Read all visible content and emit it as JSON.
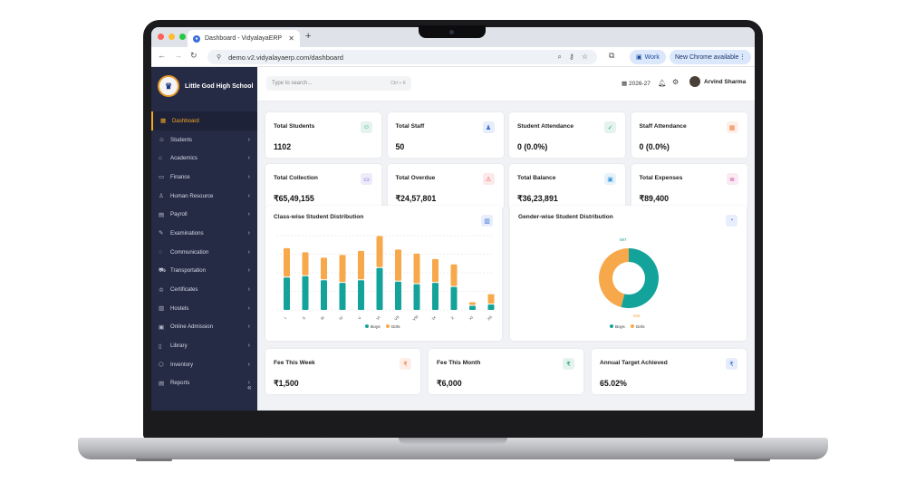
{
  "browser": {
    "tab_title": "Dashboard - VidyalayaERP",
    "url": "demo.v2.vidyalayaerp.com/dashboard",
    "work_label": "Work",
    "new_chrome_label": "New Chrome available"
  },
  "app": {
    "school_name": "Little God High School",
    "search_placeholder": "Type to search...",
    "search_shortcut": "Ctrl + K",
    "academic_year": "2026-27",
    "user_name": "Arvind Sharma"
  },
  "sidebar": {
    "items": [
      {
        "label": "Dashboard",
        "icon": "dashboard-icon",
        "active": true
      },
      {
        "label": "Students",
        "icon": "students-icon"
      },
      {
        "label": "Academics",
        "icon": "academics-icon"
      },
      {
        "label": "Finance",
        "icon": "finance-icon"
      },
      {
        "label": "Human Resource",
        "icon": "human-resource-icon"
      },
      {
        "label": "Payroll",
        "icon": "payroll-icon"
      },
      {
        "label": "Examinations",
        "icon": "examinations-icon"
      },
      {
        "label": "Communication",
        "icon": "communication-icon"
      },
      {
        "label": "Transportation",
        "icon": "transportation-icon"
      },
      {
        "label": "Certificates",
        "icon": "certificates-icon"
      },
      {
        "label": "Hostels",
        "icon": "hostels-icon"
      },
      {
        "label": "Online Admission",
        "icon": "online-admission-icon"
      },
      {
        "label": "Library",
        "icon": "library-icon"
      },
      {
        "label": "Inventory",
        "icon": "inventory-icon"
      },
      {
        "label": "Reports",
        "icon": "reports-icon"
      }
    ]
  },
  "stats": [
    {
      "label": "Total Students",
      "value": "1102",
      "icon": "students-icon",
      "color": "#22a06b"
    },
    {
      "label": "Total Staff",
      "value": "50",
      "icon": "staff-icon",
      "color": "#3b6fd8"
    },
    {
      "label": "Student Attendance",
      "value": "0 (0.0%)",
      "icon": "attendance-icon",
      "color": "#22a06b"
    },
    {
      "label": "Staff Attendance",
      "value": "0 (0.0%)",
      "icon": "calendar-icon",
      "color": "#f07b3f"
    },
    {
      "label": "Total Collection",
      "value": "₹65,49,155",
      "icon": "card-icon",
      "color": "#6b5bd6"
    },
    {
      "label": "Total Overdue",
      "value": "₹24,57,801",
      "icon": "warning-icon",
      "color": "#e5484d"
    },
    {
      "label": "Total Balance",
      "value": "₹36,23,891",
      "icon": "wallet-icon",
      "color": "#3b9ad8"
    },
    {
      "label": "Total Expenses",
      "value": "₹89,400",
      "icon": "receipt-icon",
      "color": "#d64fa0"
    }
  ],
  "fees": [
    {
      "label": "Fee This Week",
      "value": "₹1,500",
      "icon": "rupee-icon",
      "color": "#f07b3f"
    },
    {
      "label": "Fee This Month",
      "value": "₹6,000",
      "icon": "rupee-icon",
      "color": "#22a06b"
    },
    {
      "label": "Annual Target Achieved",
      "value": "65.02%",
      "icon": "rupee-icon",
      "color": "#3b6fd8"
    }
  ],
  "chart_data": [
    {
      "type": "bar",
      "title": "Class-wise Student Distribution",
      "categories": [
        "I",
        "II",
        "III",
        "IV",
        "V",
        "VI",
        "VII",
        "VIII",
        "IX",
        "X",
        "XI",
        "XII"
      ],
      "series": [
        {
          "name": "Boys",
          "values": [
            48,
            50,
            44,
            40,
            44,
            62,
            42,
            38,
            40,
            34,
            6,
            8
          ],
          "color": "#14a39a"
        },
        {
          "name": "Girls",
          "values": [
            42,
            34,
            32,
            40,
            42,
            46,
            46,
            44,
            34,
            32,
            4,
            14
          ],
          "color": "#f7a84a"
        }
      ],
      "stacked": true,
      "legend": "bottom"
    },
    {
      "type": "pie",
      "donut": true,
      "title": "Gender-wise Student Distribution",
      "categories": [
        "Boys",
        "Girls"
      ],
      "values": [
        597,
        505
      ],
      "colors": [
        "#14a39a",
        "#f7a84a"
      ],
      "legend": "bottom"
    }
  ]
}
